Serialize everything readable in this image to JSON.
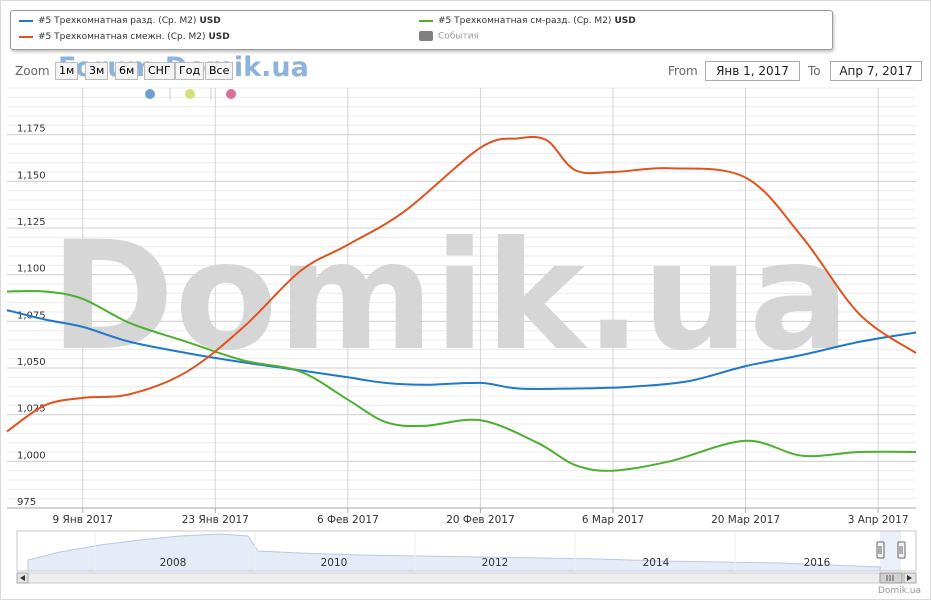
{
  "legend": {
    "items": [
      {
        "label": "#5 Трехкомнатная разд. (Ср. М2)",
        "currency": "USD",
        "color": "#1f78c8"
      },
      {
        "label": "#5 Трехкомнатная см-разд. (Ср. М2)",
        "currency": "USD",
        "color": "#4daf32"
      },
      {
        "label": "#5 Трехкомнатная смежн. (Ср. М2)",
        "currency": "USD",
        "color": "#e0531e"
      },
      {
        "label": "События",
        "currency": "",
        "color": "#808080"
      }
    ]
  },
  "toolbar": {
    "zoom_label": "Zoom",
    "zoom_buttons": [
      "1м",
      "3м",
      "6м",
      "СНГ",
      "Год",
      "Все"
    ],
    "from_label": "From",
    "from_value": "Янв 1, 2017",
    "to_label": "To",
    "to_value": "Апр 7, 2017"
  },
  "watermark": {
    "small": "Forum.Domik.ua",
    "large": "Domik.ua"
  },
  "credits": "Domik.ua",
  "event_dots": [
    {
      "color": "#6e9fd3"
    },
    {
      "color": "#d5e07a"
    },
    {
      "color": "#d9709a"
    }
  ],
  "chart_data": {
    "type": "line",
    "title": "",
    "xlabel": "",
    "ylabel": "",
    "x_range": [
      "2017-01-01",
      "2017-04-07"
    ],
    "ylim": [
      975,
      1200
    ],
    "yticks": [
      975,
      1000,
      1025,
      1050,
      1075,
      1100,
      1125,
      1150,
      1175
    ],
    "ytick_labels": [
      "975",
      "1,000",
      "1,025",
      "1,050",
      "1,075",
      "1,100",
      "1,125",
      "1,150",
      "1,175"
    ],
    "xticks": [
      "2017-01-09",
      "2017-01-23",
      "2017-02-06",
      "2017-02-20",
      "2017-03-06",
      "2017-03-20",
      "2017-04-03"
    ],
    "xtick_labels": [
      "9 Янв 2017",
      "23 Янв 2017",
      "6 Фев 2017",
      "20 Фев 2017",
      "6 Мар 2017",
      "20 Мар 2017",
      "3 Апр 2017"
    ],
    "grid": true,
    "series": [
      {
        "name": "#5 Трехкомнатная разд. (Ср. М2)",
        "color": "#1f78c8",
        "points": [
          [
            "2017-01-01",
            1081
          ],
          [
            "2017-01-05",
            1076
          ],
          [
            "2017-01-09",
            1072
          ],
          [
            "2017-01-14",
            1064
          ],
          [
            "2017-01-20",
            1058
          ],
          [
            "2017-01-26",
            1053
          ],
          [
            "2017-02-02",
            1048
          ],
          [
            "2017-02-06",
            1045
          ],
          [
            "2017-02-10",
            1042
          ],
          [
            "2017-02-14",
            1041
          ],
          [
            "2017-02-20",
            1042
          ],
          [
            "2017-02-24",
            1039
          ],
          [
            "2017-03-02",
            1039
          ],
          [
            "2017-03-08",
            1040
          ],
          [
            "2017-03-14",
            1043
          ],
          [
            "2017-03-20",
            1051
          ],
          [
            "2017-03-26",
            1057
          ],
          [
            "2017-04-01",
            1064
          ],
          [
            "2017-04-07",
            1069
          ]
        ]
      },
      {
        "name": "#5 Трехкомнатная см-разд. (Ср. М2)",
        "color": "#4daf32",
        "points": [
          [
            "2017-01-01",
            1091
          ],
          [
            "2017-01-05",
            1091
          ],
          [
            "2017-01-09",
            1087
          ],
          [
            "2017-01-14",
            1074
          ],
          [
            "2017-01-20",
            1064
          ],
          [
            "2017-01-26",
            1054
          ],
          [
            "2017-02-01",
            1048
          ],
          [
            "2017-02-06",
            1033
          ],
          [
            "2017-02-10",
            1021
          ],
          [
            "2017-02-14",
            1019
          ],
          [
            "2017-02-20",
            1022
          ],
          [
            "2017-02-26",
            1010
          ],
          [
            "2017-03-02",
            998
          ],
          [
            "2017-03-06",
            995
          ],
          [
            "2017-03-12",
            1000
          ],
          [
            "2017-03-20",
            1011
          ],
          [
            "2017-03-26",
            1003
          ],
          [
            "2017-04-01",
            1005
          ],
          [
            "2017-04-07",
            1005
          ]
        ]
      },
      {
        "name": "#5 Трехкомнатная смежн. (Ср. М2)",
        "color": "#e0531e",
        "points": [
          [
            "2017-01-01",
            1016
          ],
          [
            "2017-01-05",
            1030
          ],
          [
            "2017-01-09",
            1034
          ],
          [
            "2017-01-14",
            1036
          ],
          [
            "2017-01-20",
            1048
          ],
          [
            "2017-01-26",
            1072
          ],
          [
            "2017-02-01",
            1102
          ],
          [
            "2017-02-06",
            1116
          ],
          [
            "2017-02-12",
            1134
          ],
          [
            "2017-02-20",
            1168
          ],
          [
            "2017-02-24",
            1173
          ],
          [
            "2017-02-27",
            1172
          ],
          [
            "2017-03-02",
            1156
          ],
          [
            "2017-03-06",
            1155
          ],
          [
            "2017-03-12",
            1157
          ],
          [
            "2017-03-20",
            1152
          ],
          [
            "2017-03-26",
            1120
          ],
          [
            "2017-04-01",
            1079
          ],
          [
            "2017-04-07",
            1058
          ]
        ]
      }
    ],
    "navigator": {
      "year_labels": [
        "2008",
        "2010",
        "2012",
        "2014",
        "2016"
      ]
    }
  }
}
